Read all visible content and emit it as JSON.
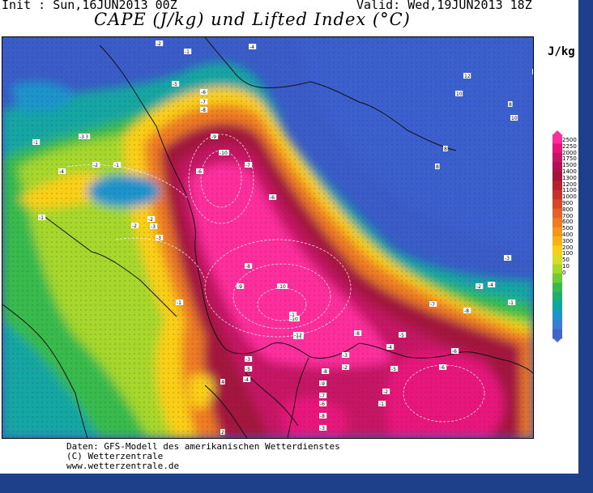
{
  "header": {
    "init": "Init : Sun,16JUN2013 00Z",
    "valid": "Valid: Wed,19JUN2013 18Z",
    "title": "CAPE (J/kg) und Lifted Index (°C)"
  },
  "legend": {
    "unit": "J/kg",
    "levels": [
      "2500",
      "2250",
      "2000",
      "1750",
      "1500",
      "1400",
      "1300",
      "1200",
      "1100",
      "1000",
      "900",
      "800",
      "700",
      "600",
      "500",
      "400",
      "300",
      "200",
      "100",
      "50",
      "10",
      "0"
    ],
    "colors": [
      "#ff2d9b",
      "#e8127a",
      "#c61463",
      "#b41052",
      "#a4143c",
      "#b8202e",
      "#c8302a",
      "#d6482a",
      "#e36227",
      "#ef7a22",
      "#f6951c",
      "#fbb016",
      "#fbcf18",
      "#d9dc23",
      "#a6d72a",
      "#6fcb33",
      "#38bb4c",
      "#1fae72",
      "#12a6a2",
      "#1f94cb",
      "#3a7dd6",
      "#4066cc"
    ]
  },
  "map": {
    "background": "#3a5cc6",
    "lifted_index_labels": [
      {
        "t": "-2"
      },
      {
        "t": "-1"
      },
      {
        "t": "-4"
      },
      {
        "t": "-3"
      },
      {
        "t": "-5"
      },
      {
        "t": "-6"
      },
      {
        "t": "-7"
      },
      {
        "t": "-8"
      },
      {
        "t": "-1"
      },
      {
        "t": "-3"
      },
      {
        "t": "-2"
      },
      {
        "t": "-1"
      },
      {
        "t": "-4"
      },
      {
        "t": "-2"
      },
      {
        "t": "-3"
      },
      {
        "t": "-1"
      },
      {
        "t": "-9"
      },
      {
        "t": "-10"
      },
      {
        "t": "-6"
      },
      {
        "t": "-2"
      },
      {
        "t": "-3"
      },
      {
        "t": "-1"
      },
      {
        "t": "-7"
      },
      {
        "t": "-6"
      },
      {
        "t": "-8"
      },
      {
        "t": "-9"
      },
      {
        "t": "-10"
      },
      {
        "t": "-10"
      },
      {
        "t": "-1"
      },
      {
        "t": "-11"
      },
      {
        "t": "-12"
      },
      {
        "t": "-8"
      },
      {
        "t": "-5"
      },
      {
        "t": "-4"
      },
      {
        "t": "-3"
      },
      {
        "t": "-6"
      },
      {
        "t": "-2"
      },
      {
        "t": "-8"
      },
      {
        "t": "-9"
      },
      {
        "t": "-7"
      },
      {
        "t": "-3"
      },
      {
        "t": "-5"
      },
      {
        "t": "-4"
      },
      {
        "t": "-6"
      },
      {
        "t": "-8"
      },
      {
        "t": "-3"
      },
      {
        "t": "-2"
      },
      {
        "t": "-1"
      },
      {
        "t": "-5"
      },
      {
        "t": "-6"
      },
      {
        "t": "-7"
      },
      {
        "t": "-8"
      },
      {
        "t": "-3"
      },
      {
        "t": "-4"
      },
      {
        "t": "-2"
      },
      {
        "t": "-1"
      },
      {
        "t": "12"
      },
      {
        "t": "10"
      },
      {
        "t": "8"
      },
      {
        "t": "10"
      },
      {
        "t": "8"
      },
      {
        "t": "8"
      },
      {
        "t": "6"
      },
      {
        "t": "4"
      },
      {
        "t": "2"
      }
    ]
  },
  "credits": {
    "line1": "Daten: GFS-Modell des amerikanischen Wetterdienstes",
    "line2": "(C) Wetterzentrale",
    "line3": "www.wetterzentrale.de"
  }
}
